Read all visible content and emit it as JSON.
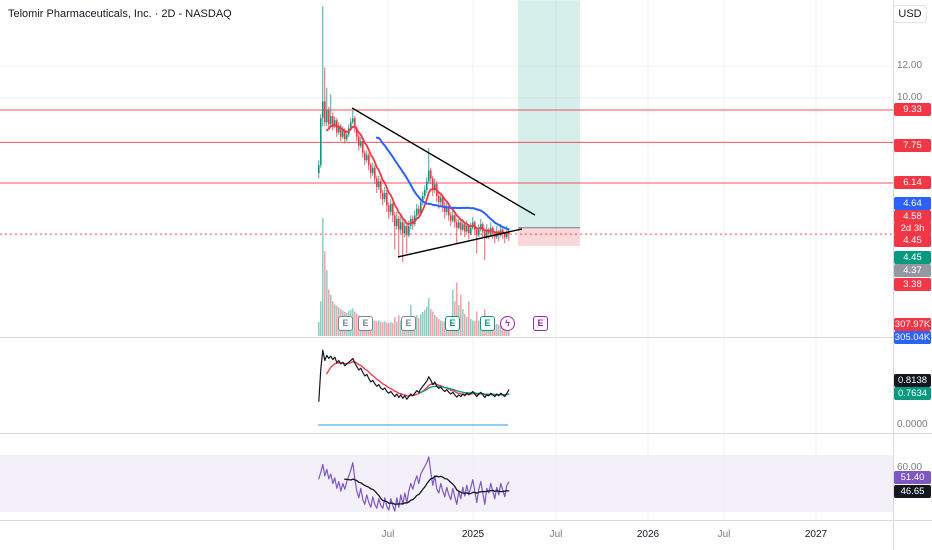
{
  "header": {
    "symbol_title": "Telomir Pharmaceuticals, Inc. · 2D - NASDAQ",
    "currency_button": "USD"
  },
  "colors": {
    "up": "#089981",
    "down": "#f23645",
    "ma_blue": "#2962ff",
    "ma_red": "#f23645",
    "purple": "#7e57c2",
    "level_line": "#f23645",
    "axis_text": "#787b86",
    "text": "#131722",
    "grid": "#eef1f6",
    "separator": "#d7dae0",
    "band": "rgba(126,87,194,0.09)",
    "long_profit_zone": "rgba(8,153,129,0.16)",
    "long_loss_zone": "rgba(242,54,69,0.20)",
    "baseline_blue": "#2196f3",
    "trendline": "#000000"
  },
  "price_axis": {
    "scale_labels": [
      {
        "text": "12.00"
      },
      {
        "text": "10.00"
      }
    ],
    "badges": [
      {
        "text": "9.33",
        "bg": "#f23645"
      },
      {
        "text": "7.75",
        "bg": "#f23645"
      },
      {
        "text": "6.14",
        "bg": "#f23645"
      },
      {
        "text": "4.64",
        "bg": "#2962ff"
      },
      {
        "text": "4.58",
        "bg": "#f23645"
      },
      {
        "text": "2d 3h",
        "bg": "#f23645"
      },
      {
        "text": "4.45",
        "bg": "#f23645"
      },
      {
        "text": "4.45",
        "bg": "#089981"
      },
      {
        "text": "4.37",
        "bg": "#9598a1"
      },
      {
        "text": "3.38",
        "bg": "#f23645"
      },
      {
        "text": "307.97K",
        "bg": "#f23645"
      },
      {
        "text": "305.04K",
        "bg": "#2962ff"
      }
    ]
  },
  "pane2_axis": {
    "labels": [
      {
        "text": "0.0000"
      }
    ],
    "badges": [
      {
        "text": "0.8138",
        "bg": "#131722"
      },
      {
        "text": "0.7634",
        "bg": "#089981"
      }
    ]
  },
  "pane3_axis": {
    "labels": [
      {
        "text": "60.00"
      }
    ],
    "badges": [
      {
        "text": "51.40",
        "bg": "#7e57c2"
      },
      {
        "text": "46.65",
        "bg": "#131722"
      }
    ]
  },
  "time_axis": {
    "labels": [
      {
        "text": "Jul",
        "kind": "month"
      },
      {
        "text": "2025",
        "kind": "year"
      },
      {
        "text": "Jul",
        "kind": "month"
      },
      {
        "text": "2026",
        "kind": "year"
      },
      {
        "text": "Jul",
        "kind": "month"
      },
      {
        "text": "2027",
        "kind": "year"
      }
    ]
  },
  "events": [
    {
      "glyph": "E",
      "color": "#758696",
      "kind": "earnings-past"
    },
    {
      "glyph": "E",
      "color": "#758696",
      "kind": "earnings-past"
    },
    {
      "glyph": "E",
      "color": "#758696",
      "kind": "earnings-past"
    },
    {
      "glyph": "E",
      "color": "#089981",
      "kind": "earnings-beat"
    },
    {
      "glyph": "E",
      "color": "#089981",
      "kind": "earnings-beat"
    },
    {
      "glyph": "ϟ",
      "color": "#9c27b0",
      "kind": "power-event"
    },
    {
      "glyph": "E",
      "color": "#9c27b0",
      "kind": "earnings-upcoming"
    }
  ],
  "chart_data": {
    "type": "candlestick",
    "title": "Telomir Pharmaceuticals, Inc.",
    "interval": "2D",
    "exchange": "NASDAQ",
    "currency": "USD",
    "last_price": 4.58,
    "countdown": "2d 3h",
    "price_levels": [
      9.33,
      7.75,
      6.14
    ],
    "visible_price_labels": [
      12.0,
      10.0
    ],
    "long_position": {
      "target": 17.5,
      "entry": 4.75,
      "stop": 4.28
    },
    "trendlines": [
      {
        "i1": 17,
        "p1": 9.44,
        "i2": 108.5,
        "p2": 5.11
      },
      {
        "i1": 40,
        "p1": 4.02,
        "i2": 102,
        "p2": 4.72
      }
    ],
    "candles": [
      [
        6.5,
        7.0,
        6.3,
        6.8
      ],
      [
        6.8,
        9.1,
        6.7,
        8.9
      ],
      [
        8.9,
        16.9,
        8.5,
        9.8
      ],
      [
        9.8,
        11.9,
        8.5,
        8.7
      ],
      [
        8.7,
        10.6,
        8.5,
        9.3
      ],
      [
        9.3,
        9.5,
        8.4,
        8.6
      ],
      [
        8.6,
        10.2,
        8.5,
        9.0
      ],
      [
        9.0,
        9.2,
        8.3,
        8.5
      ],
      [
        8.5,
        9.0,
        8.4,
        8.8
      ],
      [
        8.8,
        8.9,
        8.0,
        8.2
      ],
      [
        8.2,
        8.7,
        8.1,
        8.5
      ],
      [
        8.5,
        8.6,
        7.8,
        8.0
      ],
      [
        8.0,
        8.5,
        7.9,
        8.3
      ],
      [
        8.3,
        8.4,
        7.7,
        7.9
      ],
      [
        7.9,
        8.3,
        7.8,
        8.1
      ],
      [
        8.1,
        8.6,
        8.0,
        8.4
      ],
      [
        8.4,
        8.9,
        8.3,
        8.7
      ],
      [
        8.7,
        9.3,
        8.6,
        8.9
      ],
      [
        8.9,
        9.0,
        8.2,
        8.4
      ],
      [
        8.4,
        8.5,
        7.8,
        8.0
      ],
      [
        8.0,
        8.1,
        7.4,
        7.6
      ],
      [
        7.6,
        8.0,
        7.5,
        7.8
      ],
      [
        7.8,
        7.9,
        7.1,
        7.3
      ],
      [
        7.3,
        7.4,
        6.8,
        7.0
      ],
      [
        7.0,
        7.4,
        6.9,
        7.2
      ],
      [
        7.2,
        7.3,
        6.6,
        6.8
      ],
      [
        6.8,
        6.9,
        6.3,
        6.5
      ],
      [
        6.5,
        6.9,
        6.4,
        6.7
      ],
      [
        6.7,
        6.8,
        6.1,
        6.3
      ],
      [
        6.3,
        6.4,
        5.8,
        6.0
      ],
      [
        6.0,
        6.4,
        5.9,
        6.2
      ],
      [
        6.2,
        6.3,
        5.6,
        5.8
      ],
      [
        5.8,
        5.9,
        5.4,
        5.6
      ],
      [
        5.6,
        6.0,
        5.5,
        5.8
      ],
      [
        5.8,
        5.9,
        5.2,
        5.4
      ],
      [
        5.4,
        5.5,
        5.0,
        5.2
      ],
      [
        5.2,
        5.6,
        5.1,
        5.45
      ],
      [
        5.45,
        5.5,
        4.9,
        5.1
      ],
      [
        5.1,
        5.2,
        4.2,
        4.8
      ],
      [
        4.8,
        5.2,
        4.7,
        5.0
      ],
      [
        5.0,
        5.1,
        4.0,
        4.7
      ],
      [
        4.7,
        5.1,
        4.6,
        4.9
      ],
      [
        4.9,
        5.0,
        3.9,
        4.6
      ],
      [
        4.6,
        5.0,
        4.5,
        4.8
      ],
      [
        4.8,
        4.9,
        4.1,
        4.55
      ],
      [
        4.55,
        4.95,
        4.5,
        4.8
      ],
      [
        4.8,
        5.1,
        4.7,
        5.0
      ],
      [
        5.0,
        5.1,
        4.7,
        4.85
      ],
      [
        4.85,
        5.25,
        4.8,
        5.1
      ],
      [
        5.1,
        5.45,
        5.0,
        5.3
      ],
      [
        5.3,
        5.4,
        5.0,
        5.15
      ],
      [
        5.15,
        5.65,
        5.1,
        5.5
      ],
      [
        5.5,
        5.85,
        5.4,
        5.7
      ],
      [
        5.7,
        6.05,
        5.6,
        5.9
      ],
      [
        5.9,
        6.35,
        5.8,
        6.2
      ],
      [
        6.2,
        7.5,
        6.1,
        6.6
      ],
      [
        6.6,
        6.7,
        6.1,
        6.3
      ],
      [
        6.3,
        6.4,
        5.7,
        5.9
      ],
      [
        5.9,
        6.3,
        5.8,
        6.1
      ],
      [
        6.1,
        6.2,
        5.5,
        5.7
      ],
      [
        5.7,
        5.8,
        5.3,
        5.5
      ],
      [
        5.5,
        5.8,
        5.4,
        5.65
      ],
      [
        5.65,
        5.7,
        5.2,
        5.4
      ],
      [
        5.4,
        5.5,
        5.0,
        5.2
      ],
      [
        5.2,
        5.5,
        5.1,
        5.35
      ],
      [
        5.35,
        5.4,
        4.95,
        5.1
      ],
      [
        5.1,
        5.2,
        4.8,
        4.95
      ],
      [
        4.95,
        5.25,
        4.9,
        5.1
      ],
      [
        5.1,
        5.15,
        4.75,
        4.9
      ],
      [
        4.9,
        5.0,
        4.35,
        4.75
      ],
      [
        4.75,
        5.0,
        4.7,
        4.9
      ],
      [
        4.9,
        4.95,
        4.55,
        4.7
      ],
      [
        4.7,
        5.0,
        4.65,
        4.85
      ],
      [
        4.85,
        4.9,
        4.5,
        4.65
      ],
      [
        4.65,
        4.95,
        4.6,
        4.8
      ],
      [
        4.8,
        4.85,
        4.45,
        4.6
      ],
      [
        4.6,
        4.9,
        4.55,
        4.75
      ],
      [
        4.75,
        5.05,
        4.7,
        4.9
      ],
      [
        4.9,
        4.95,
        4.55,
        4.7
      ],
      [
        4.7,
        4.75,
        4.1,
        4.55
      ],
      [
        4.55,
        4.85,
        4.5,
        4.7
      ],
      [
        4.7,
        5.0,
        4.65,
        4.85
      ],
      [
        4.85,
        4.9,
        4.5,
        4.65
      ],
      [
        4.65,
        4.7,
        3.95,
        4.5
      ],
      [
        4.5,
        4.85,
        4.45,
        4.7
      ],
      [
        4.7,
        4.75,
        4.45,
        4.6
      ],
      [
        4.6,
        4.9,
        4.55,
        4.75
      ],
      [
        4.75,
        4.8,
        4.45,
        4.6
      ],
      [
        4.6,
        4.65,
        4.35,
        4.5
      ],
      [
        4.5,
        4.8,
        4.45,
        4.65
      ],
      [
        4.65,
        4.7,
        4.4,
        4.55
      ],
      [
        4.55,
        4.85,
        4.5,
        4.7
      ],
      [
        4.7,
        4.75,
        4.45,
        4.6
      ],
      [
        4.6,
        4.65,
        4.35,
        4.5
      ],
      [
        4.5,
        4.8,
        4.45,
        4.65
      ],
      [
        4.65,
        4.7,
        4.4,
        4.58
      ]
    ],
    "volume_k": [
      800,
      5000,
      60000,
      30000,
      18000,
      9000,
      7000,
      5000,
      4200,
      3800,
      3400,
      3000,
      2700,
      2400,
      2200,
      2600,
      2900,
      3200,
      2500,
      2100,
      1800,
      1500,
      1700,
      1400,
      1200,
      1300,
      1100,
      1000,
      950,
      900,
      1000,
      850,
      800,
      900,
      750,
      700,
      800,
      700,
      1500,
      900,
      1800,
      1000,
      1600,
      900,
      1200,
      800,
      4000,
      1200,
      1500,
      1800,
      1300,
      2000,
      2400,
      2800,
      3500,
      6000,
      3000,
      2500,
      1800,
      1500,
      1200,
      1000,
      900,
      850,
      800,
      750,
      700,
      9000,
      5000,
      12000,
      4000,
      7000,
      3000,
      2000,
      1500,
      5000,
      1200,
      1000,
      900,
      2500,
      1000,
      900,
      800,
      3000,
      900,
      700,
      650,
      600,
      550,
      600,
      500,
      550,
      450,
      400,
      350,
      308
    ],
    "volume_last_label": "307.97K",
    "indicator2": {
      "name": "ratio-indicator",
      "last": 0.8138,
      "signal_last": 0.7634,
      "baseline": 0.0,
      "values": [
        0.55,
        1.3,
        1.74,
        1.5,
        1.62,
        1.55,
        1.6,
        1.52,
        1.58,
        1.45,
        1.5,
        1.42,
        1.46,
        1.38,
        1.42,
        1.46,
        1.5,
        1.55,
        1.44,
        1.36,
        1.28,
        1.32,
        1.22,
        1.14,
        1.18,
        1.08,
        1.0,
        1.04,
        0.96,
        0.9,
        0.94,
        0.86,
        0.82,
        0.86,
        0.78,
        0.74,
        0.78,
        0.72,
        0.66,
        0.72,
        0.64,
        0.7,
        0.62,
        0.68,
        0.6,
        0.66,
        0.72,
        0.68,
        0.74,
        0.8,
        0.76,
        0.84,
        0.9,
        0.96,
        1.02,
        1.12,
        1.04,
        0.94,
        1.0,
        0.9,
        0.85,
        0.88,
        0.82,
        0.78,
        0.82,
        0.76,
        0.72,
        0.76,
        0.7,
        0.65,
        0.7,
        0.66,
        0.72,
        0.68,
        0.74,
        0.7,
        0.74,
        0.78,
        0.72,
        0.66,
        0.72,
        0.76,
        0.7,
        0.64,
        0.7,
        0.68,
        0.74,
        0.7,
        0.66,
        0.72,
        0.68,
        0.74,
        0.7,
        0.66,
        0.74,
        0.8138
      ]
    },
    "indicator3": {
      "name": "oscillator",
      "last": 51.4,
      "signal_last": 46.65,
      "visible_level": 60.0,
      "values": [
        55,
        62,
        70,
        58,
        65,
        55,
        60,
        50,
        56,
        45,
        52,
        42,
        50,
        44,
        52,
        58,
        64,
        72,
        55,
        42,
        35,
        45,
        33,
        28,
        38,
        30,
        25,
        36,
        28,
        24,
        34,
        27,
        24,
        35,
        26,
        22,
        34,
        27,
        21,
        35,
        25,
        38,
        28,
        40,
        30,
        42,
        50,
        44,
        52,
        58,
        50,
        60,
        64,
        68,
        72,
        78,
        62,
        48,
        58,
        44,
        40,
        50,
        42,
        36,
        46,
        38,
        33,
        45,
        36,
        28,
        42,
        34,
        46,
        37,
        48,
        38,
        46,
        54,
        42,
        30,
        44,
        52,
        40,
        28,
        45,
        40,
        50,
        42,
        34,
        46,
        38,
        50,
        43,
        36,
        48,
        51.4
      ]
    }
  }
}
